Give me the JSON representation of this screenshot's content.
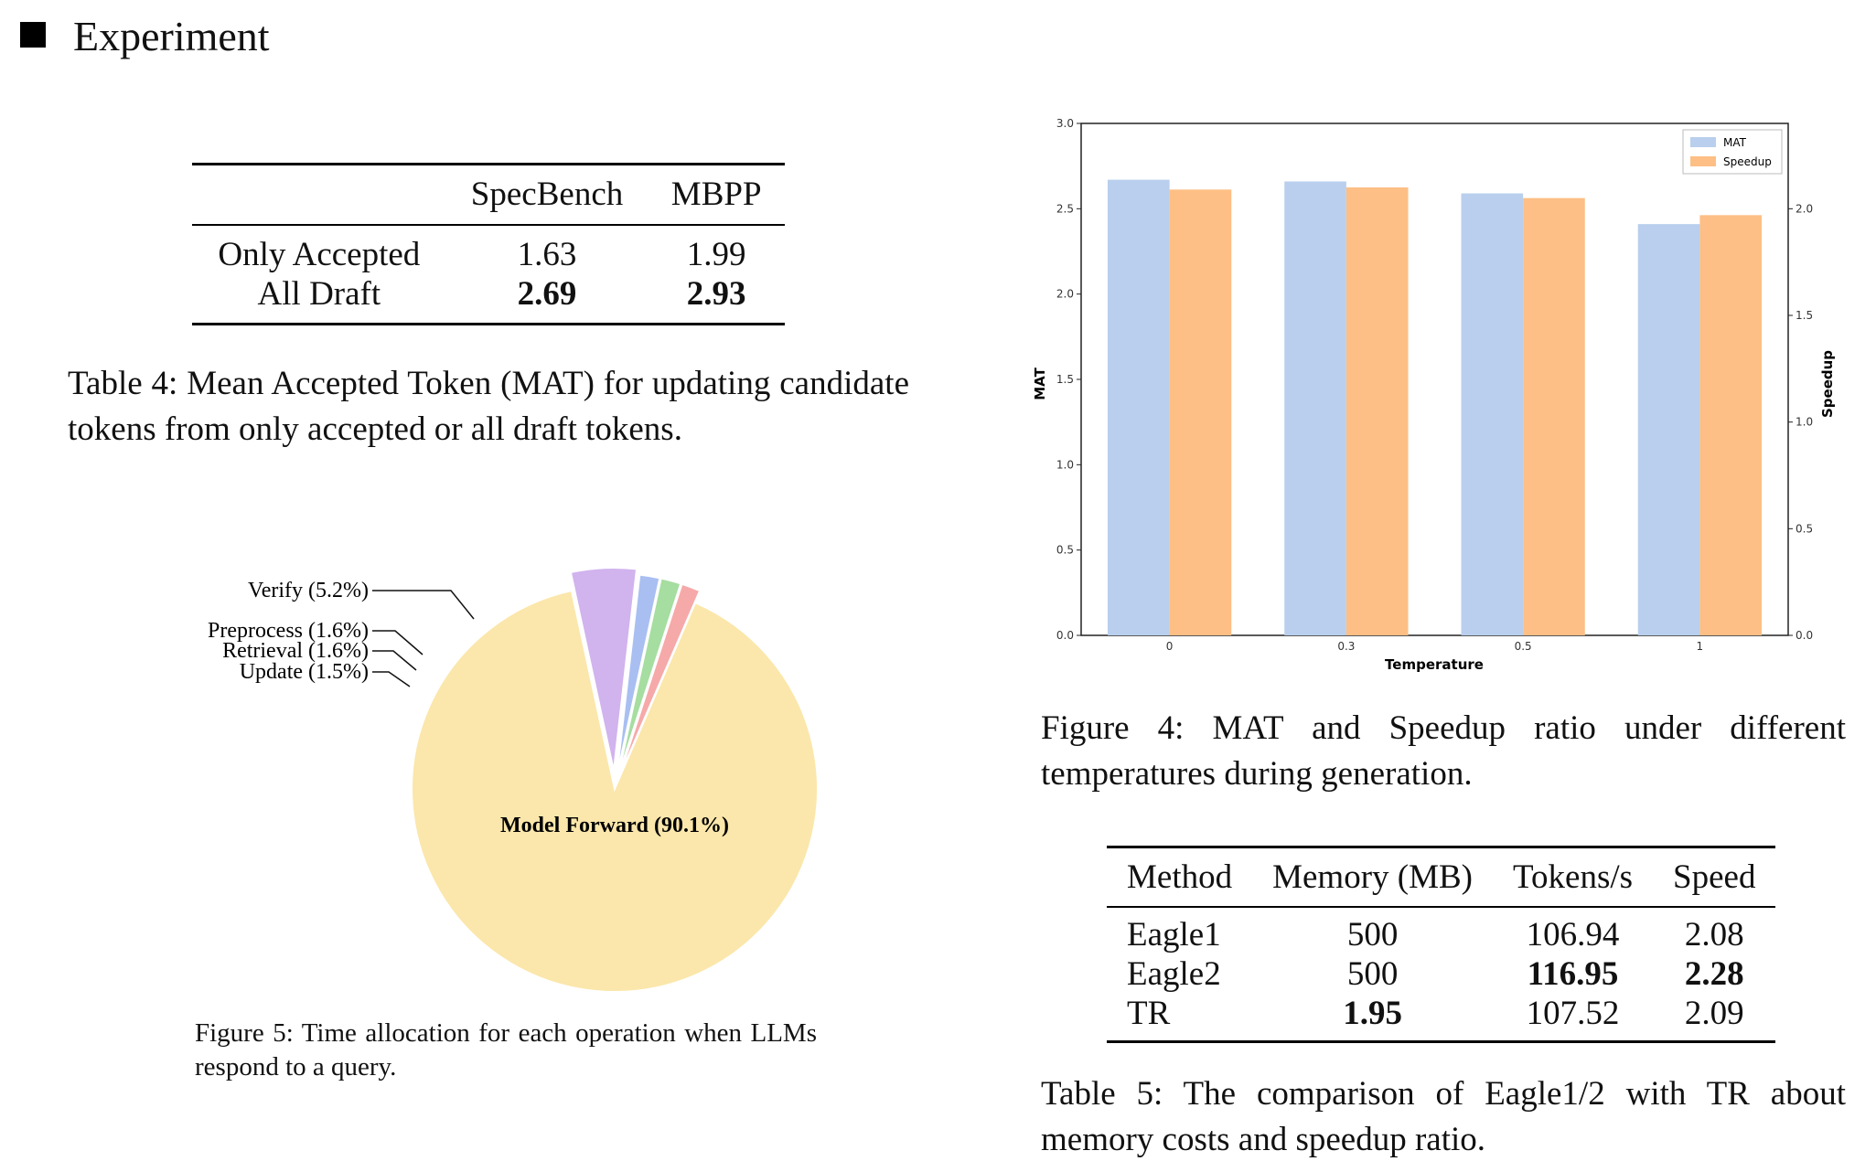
{
  "header": {
    "title": "Experiment"
  },
  "table4": {
    "columns": [
      "",
      "SpecBench",
      "MBPP"
    ],
    "rows": [
      {
        "label": "Only Accepted",
        "specbench": "1.63",
        "mbpp": "1.99",
        "bold": false
      },
      {
        "label": "All Draft",
        "specbench": "2.69",
        "mbpp": "2.93",
        "bold": true
      }
    ],
    "caption": "Table 4:  Mean Accepted Token (MAT) for updating candidate tokens from only accepted or all draft tokens."
  },
  "figure4": {
    "caption": "Figure 4: MAT and Speedup ratio under different temperatures during generation."
  },
  "table5": {
    "columns": [
      "Method",
      "Memory (MB)",
      "Tokens/s",
      "Speed"
    ],
    "rows": [
      {
        "method": "Eagle1",
        "memory": "500",
        "tokens": "106.94",
        "speed": "2.08"
      },
      {
        "method": "Eagle2",
        "memory": "500",
        "tokens": "116.95",
        "speed": "2.28"
      },
      {
        "method": "TR",
        "memory": "1.95",
        "tokens": "107.52",
        "speed": "2.09"
      }
    ],
    "caption": "Table 5: The comparison of Eagle1/2 with TR about memory costs and speedup ratio."
  },
  "figure5": {
    "caption": "Figure 5:  Time allocation for each operation when LLMs respond to a query."
  },
  "chart_data": [
    {
      "type": "bar",
      "title": "",
      "xlabel": "Temperature",
      "ylabel": "MAT",
      "y2label": "Speedup",
      "categories": [
        "0",
        "0.3",
        "0.5",
        "1"
      ],
      "series": [
        {
          "name": "MAT",
          "axis": "left",
          "color": "#b9cfed",
          "values": [
            2.67,
            2.66,
            2.59,
            2.41
          ]
        },
        {
          "name": "Speedup",
          "axis": "right",
          "color": "#fdbf85",
          "values": [
            2.09,
            2.1,
            2.05,
            1.97
          ]
        }
      ],
      "ylim": [
        0,
        3.0
      ],
      "yticks": [
        "0.0",
        "0.5",
        "1.0",
        "1.5",
        "2.0",
        "2.5",
        "3.0"
      ],
      "y2lim": [
        0,
        2.4
      ],
      "y2ticks": [
        "0.0",
        "0.5",
        "1.0",
        "1.5",
        "2.0"
      ],
      "legend": "top-right",
      "grid": false
    },
    {
      "type": "pie",
      "title": "",
      "slices": [
        {
          "label": "Model Forward (90.1%)",
          "value": 90.1,
          "color": "#fbe7ab"
        },
        {
          "label": "Verify (5.2%)",
          "value": 5.2,
          "color": "#d1b3ee"
        },
        {
          "label": "Preprocess (1.6%)",
          "value": 1.6,
          "color": "#a9bff2"
        },
        {
          "label": "Retrieval (1.6%)",
          "value": 1.6,
          "color": "#a6dda0"
        },
        {
          "label": "Update (1.5%)",
          "value": 1.5,
          "color": "#f6a9a9"
        }
      ]
    }
  ]
}
